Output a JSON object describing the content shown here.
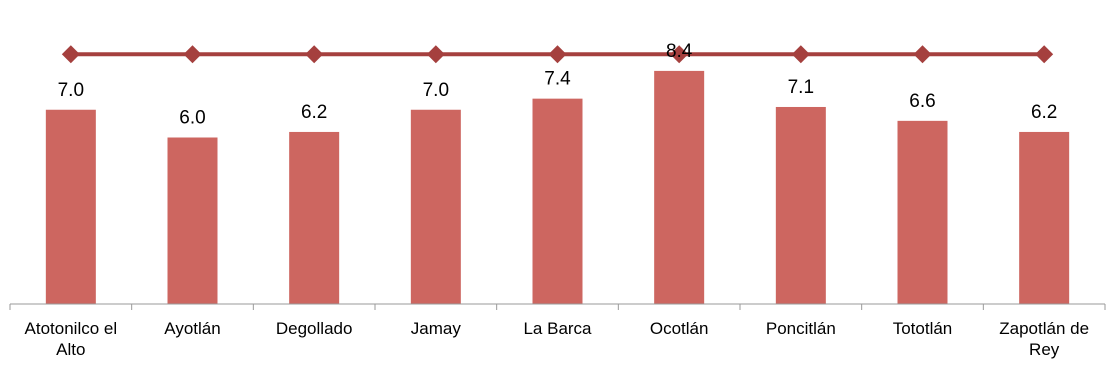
{
  "chart_data": {
    "type": "bar",
    "categories": [
      [
        "Atotonilco el",
        "Alto"
      ],
      [
        "Ayotlán"
      ],
      [
        "Degollado"
      ],
      [
        "Jamay"
      ],
      [
        "La Barca"
      ],
      [
        "Ocotlán"
      ],
      [
        "Poncitlán"
      ],
      [
        "Tototlán"
      ],
      [
        "Zapotlán de",
        "Rey"
      ]
    ],
    "series": [
      {
        "type": "bar",
        "values": [
          7.0,
          6.0,
          6.2,
          7.0,
          7.4,
          8.4,
          7.1,
          6.6,
          6.2
        ],
        "labels": [
          "7.0",
          "6.0",
          "6.2",
          "7.0",
          "7.4",
          "8.4",
          "7.1",
          "6.6",
          "6.2"
        ],
        "color": "#CD6660"
      },
      {
        "type": "line",
        "values": [
          9.0,
          9.0,
          9.0,
          9.0,
          9.0,
          9.0,
          9.0,
          9.0,
          9.0
        ],
        "color": "#A5403E",
        "marker": "diamond"
      }
    ],
    "ylim": [
      0,
      9.6
    ],
    "title": "",
    "xlabel": "",
    "ylabel": "",
    "grid": false,
    "legend": "none"
  }
}
